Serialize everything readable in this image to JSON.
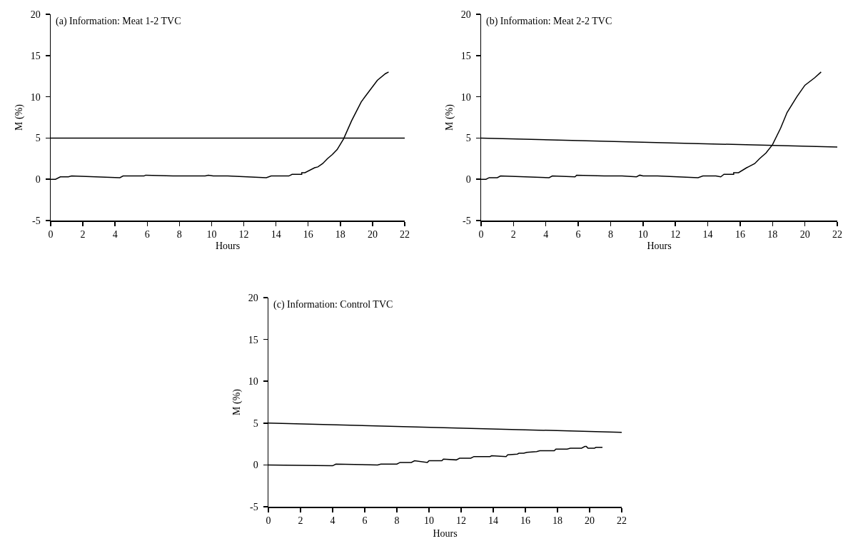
{
  "chart_data": [
    {
      "type": "line",
      "title": "(a) Information: Meat 1-2 TVC",
      "xlabel": "Hours",
      "ylabel": "M (%)",
      "xlim": [
        0,
        22
      ],
      "xticks": [
        0,
        2,
        4,
        6,
        8,
        10,
        12,
        14,
        16,
        18,
        20,
        22
      ],
      "ylim": [
        -5,
        20
      ],
      "yticks": [
        -5,
        0,
        5,
        10,
        15,
        20
      ],
      "grid": false,
      "marker": "none",
      "line_style": "solid",
      "series": [
        {
          "color": "#000000",
          "x": [
            0,
            0.3,
            0.6,
            1.1,
            1.3,
            4.3,
            4.5,
            5.8,
            5.9,
            7.6,
            8.7,
            9.6,
            9.8,
            10.1,
            11,
            13.4,
            13.7,
            14.5,
            14.8,
            15,
            15.6,
            15.6,
            15.8,
            16.4,
            16.6,
            16.9,
            17.2,
            17.5,
            17.8,
            18.2,
            18.7,
            19.3,
            19.8,
            20.3,
            20.8,
            21
          ],
          "values": [
            0,
            0,
            0.3,
            0.3,
            0.4,
            0.2,
            0.4,
            0.4,
            0.5,
            0.4,
            0.4,
            0.4,
            0.5,
            0.4,
            0.4,
            0.2,
            0.4,
            0.4,
            0.4,
            0.6,
            0.6,
            0.8,
            0.8,
            1.4,
            1.5,
            1.9,
            2.5,
            3,
            3.6,
            4.9,
            7.1,
            9.4,
            10.7,
            12,
            12.8,
            13
          ]
        },
        {
          "color": "#000000",
          "x": [
            0,
            22
          ],
          "values": [
            5,
            5
          ]
        }
      ]
    },
    {
      "type": "line",
      "title": "(b) Information: Meat 2-2 TVC",
      "xlabel": "Hours",
      "ylabel": "M (%)",
      "xlim": [
        0,
        22
      ],
      "xticks": [
        0,
        2,
        4,
        6,
        8,
        10,
        12,
        14,
        16,
        18,
        20,
        22
      ],
      "ylim": [
        -5,
        20
      ],
      "yticks": [
        -5,
        0,
        5,
        10,
        15,
        20
      ],
      "grid": false,
      "marker": "none",
      "line_style": "solid",
      "series": [
        {
          "color": "#000000",
          "x": [
            0,
            0.3,
            0.5,
            1,
            1.2,
            4.2,
            4.4,
            5.8,
            5.9,
            7.6,
            8.7,
            9.6,
            9.8,
            10,
            10.9,
            13.4,
            13.7,
            14.5,
            14.8,
            15,
            15.6,
            15.6,
            15.9,
            16.4,
            16.5,
            16.9,
            17.2,
            17.6,
            18,
            18.5,
            18.9,
            19.5,
            20,
            20.6,
            21
          ],
          "values": [
            0,
            0,
            0.2,
            0.2,
            0.4,
            0.2,
            0.4,
            0.3,
            0.5,
            0.4,
            0.4,
            0.3,
            0.5,
            0.4,
            0.4,
            0.2,
            0.4,
            0.4,
            0.3,
            0.6,
            0.6,
            0.8,
            0.8,
            1.4,
            1.5,
            1.9,
            2.5,
            3.2,
            4.2,
            6.2,
            8.1,
            10,
            11.4,
            12.3,
            13
          ]
        },
        {
          "color": "#000000",
          "x": [
            0,
            22
          ],
          "values": [
            5,
            3.9
          ]
        }
      ]
    },
    {
      "type": "line",
      "title": "(c) Information: Control TVC",
      "xlabel": "Hours",
      "ylabel": "M (%)",
      "xlim": [
        0,
        22
      ],
      "xticks": [
        0,
        2,
        4,
        6,
        8,
        10,
        12,
        14,
        16,
        18,
        20,
        22
      ],
      "ylim": [
        -5,
        20
      ],
      "yticks": [
        -5,
        0,
        5,
        10,
        15,
        20
      ],
      "grid": false,
      "marker": "none",
      "line_style": "solid",
      "series": [
        {
          "color": "#000000",
          "x": [
            0,
            4,
            4.2,
            6.8,
            7,
            8,
            8.2,
            8.9,
            9.1,
            9.9,
            10,
            10.8,
            10.9,
            11.7,
            11.9,
            12.6,
            12.8,
            13.8,
            13.9,
            14.8,
            14.9,
            15.5,
            15.6,
            15.9,
            16.1,
            16.7,
            16.9,
            17.8,
            17.9,
            18.6,
            18.8,
            19.5,
            19.7,
            19.8,
            19.9,
            20.3,
            20.4,
            20.8
          ],
          "values": [
            0,
            -0.1,
            0.1,
            0,
            0.1,
            0.1,
            0.3,
            0.3,
            0.5,
            0.3,
            0.5,
            0.5,
            0.7,
            0.6,
            0.8,
            0.8,
            1,
            1,
            1.1,
            1,
            1.2,
            1.3,
            1.4,
            1.4,
            1.5,
            1.6,
            1.7,
            1.7,
            1.9,
            1.9,
            2,
            2,
            2.2,
            2.2,
            2,
            2,
            2.1,
            2.1
          ]
        },
        {
          "color": "#000000",
          "x": [
            0,
            22
          ],
          "values": [
            5,
            3.9
          ]
        }
      ]
    }
  ]
}
